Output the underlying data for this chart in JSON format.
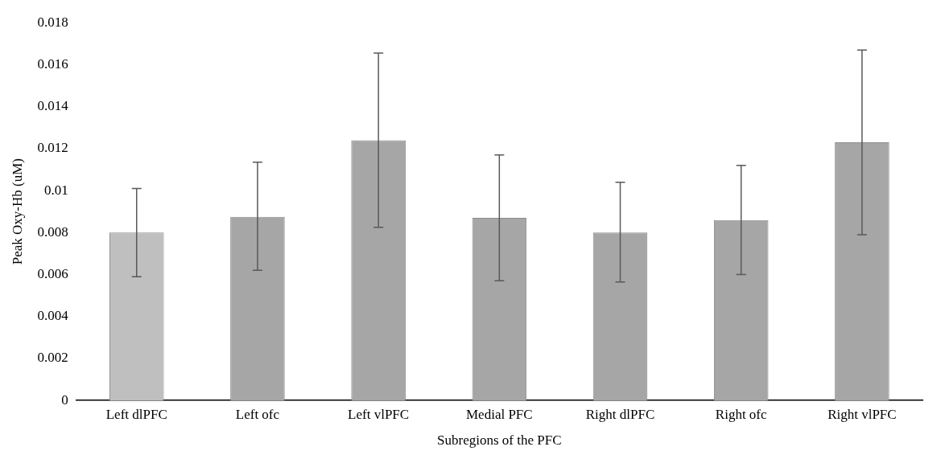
{
  "chart_data": {
    "type": "bar",
    "xlabel": "Subregions of the PFC",
    "ylabel": "Peak Oxy-Hb (uM)",
    "categories": [
      "Left dlPFC",
      "Left ofc",
      "Left vlPFC",
      "Medial PFC",
      "Right dlPFC",
      "Right ofc",
      "Right vlPFC"
    ],
    "values": [
      0.008,
      0.00875,
      0.0124,
      0.0087,
      0.008,
      0.0086,
      0.0123
    ],
    "errors": [
      [
        0.0059,
        0.0101
      ],
      [
        0.0062,
        0.01135
      ],
      [
        0.00825,
        0.01655
      ],
      [
        0.0057,
        0.0117
      ],
      [
        0.00565,
        0.0104
      ],
      [
        0.006,
        0.0112
      ],
      [
        0.0079,
        0.0167
      ]
    ],
    "colors": [
      "#bfbfbf",
      "#a6a6a6",
      "#a6a6a6",
      "#a6a6a6",
      "#a6a6a6",
      "#a6a6a6",
      "#a6a6a6"
    ],
    "ylim": [
      0,
      0.018
    ],
    "yticks": [
      0,
      0.002,
      0.004,
      0.006,
      0.008,
      0.01,
      0.012,
      0.014,
      0.016,
      0.018
    ],
    "grid": false,
    "legend": false
  }
}
